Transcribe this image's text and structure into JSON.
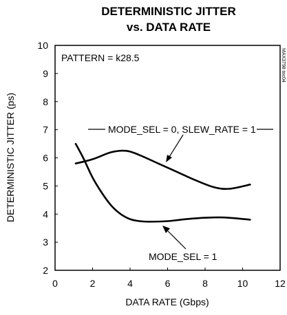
{
  "chart_data": {
    "type": "line",
    "title": "DETERMINISTIC JITTER",
    "subtitle": "vs. DATA RATE",
    "xlabel": "DATA RATE (Gbps)",
    "ylabel": "DETERMINISTIC JITTER (ps)",
    "xlim": [
      0,
      12
    ],
    "ylim": [
      2,
      10
    ],
    "xticks": [
      0,
      2,
      4,
      6,
      8,
      10,
      12
    ],
    "yticks": [
      2,
      3,
      4,
      5,
      6,
      7,
      8,
      9,
      10
    ],
    "grid": false,
    "pattern_label": "PATTERN = k28.5",
    "figure_code": "MAX3798 toc04",
    "series": [
      {
        "name": "MODE_SEL = 0, SLEW_RATE = 1",
        "x": [
          1.1,
          2.0,
          3.0,
          3.8,
          4.5,
          5.5,
          6.5,
          7.5,
          8.5,
          9.3,
          10.4
        ],
        "y": [
          5.8,
          5.95,
          6.2,
          6.25,
          6.1,
          5.8,
          5.5,
          5.2,
          4.95,
          4.9,
          5.05
        ]
      },
      {
        "name": "MODE_SEL = 1",
        "x": [
          1.1,
          1.5,
          2.0,
          2.5,
          3.0,
          3.5,
          4.0,
          4.5,
          5.0,
          6.0,
          7.0,
          8.0,
          9.0,
          10.4
        ],
        "y": [
          6.5,
          6.0,
          5.3,
          4.75,
          4.3,
          4.0,
          3.82,
          3.75,
          3.73,
          3.75,
          3.82,
          3.87,
          3.88,
          3.8
        ]
      }
    ],
    "annotations": [
      {
        "text": "MODE_SEL = 0, SLEW_RATE = 1",
        "series": 0
      },
      {
        "text": "MODE_SEL = 1",
        "series": 1
      }
    ]
  }
}
